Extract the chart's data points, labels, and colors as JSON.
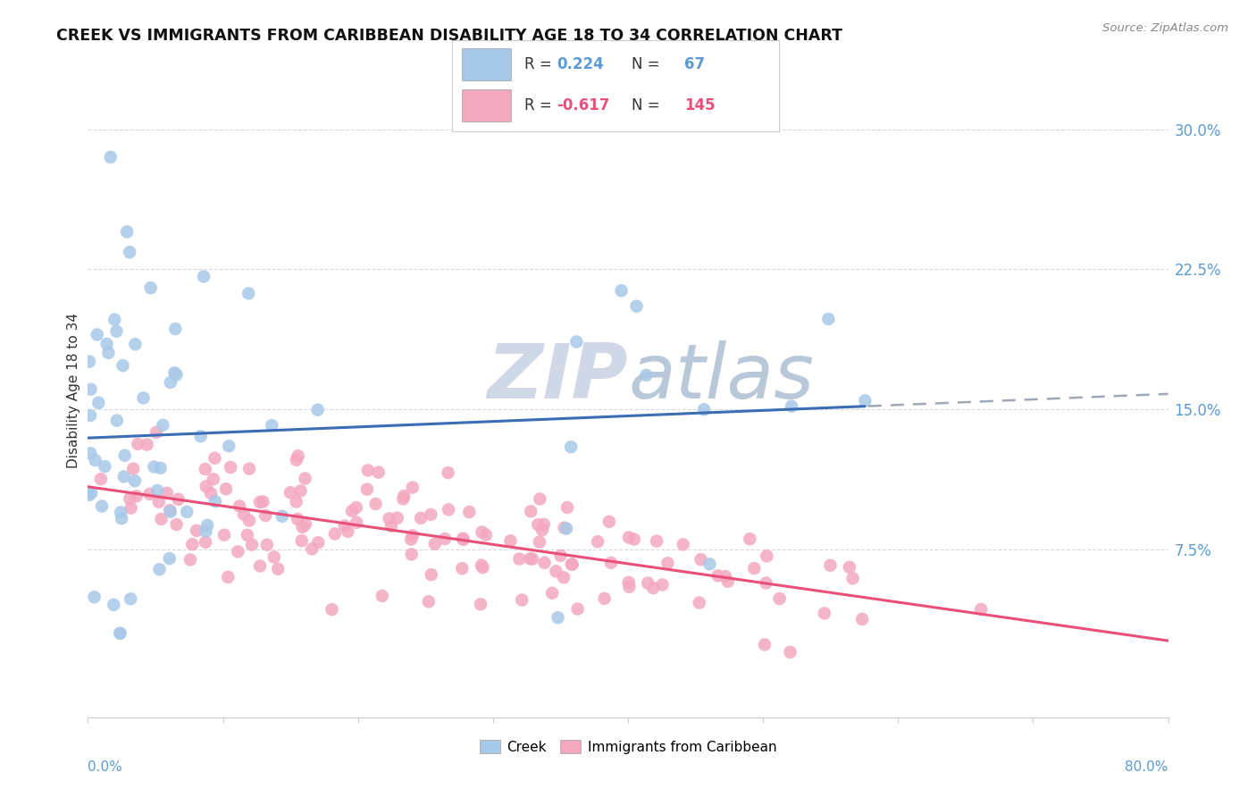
{
  "title": "CREEK VS IMMIGRANTS FROM CARIBBEAN DISABILITY AGE 18 TO 34 CORRELATION CHART",
  "source": "Source: ZipAtlas.com",
  "ylabel": "Disability Age 18 to 34",
  "right_yticklabels": [
    "7.5%",
    "15.0%",
    "22.5%",
    "30.0%"
  ],
  "right_ytick_vals": [
    0.075,
    0.15,
    0.225,
    0.3
  ],
  "creek_color": "#a8c8e8",
  "caribbean_color": "#f4a8c0",
  "creek_line_color": "#3a6db5",
  "caribbean_line_color": "#e8507a",
  "watermark_color": "#d0d8e8",
  "background_color": "#ffffff",
  "creek_R": 0.224,
  "creek_N": 67,
  "caribbean_R": -0.617,
  "caribbean_N": 145,
  "xlim": [
    0.0,
    0.8
  ],
  "ylim": [
    -0.015,
    0.335
  ],
  "creek_seed": 7,
  "caribbean_seed": 13
}
